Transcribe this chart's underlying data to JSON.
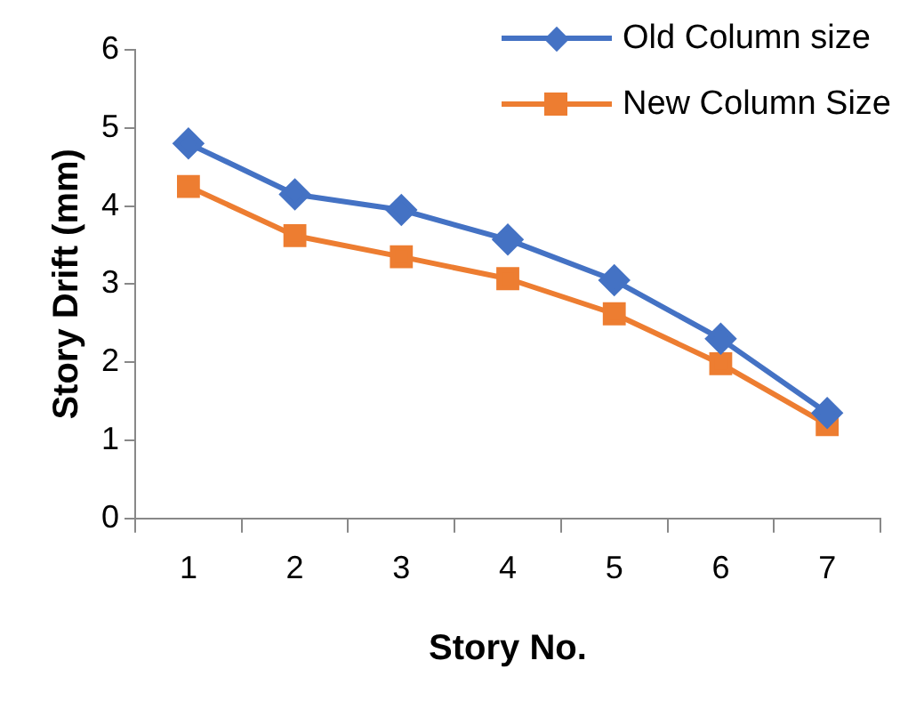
{
  "chart_data": {
    "type": "line",
    "xlabel": "Story No.",
    "ylabel": "Story Drift (mm)",
    "categories": [
      "1",
      "2",
      "3",
      "4",
      "5",
      "6",
      "7"
    ],
    "series": [
      {
        "name": "Old Column size",
        "color": "#4472c4",
        "marker": "diamond",
        "values": [
          4.8,
          4.15,
          3.95,
          3.57,
          3.05,
          2.3,
          1.35
        ]
      },
      {
        "name": "New Column Size",
        "color": "#ed7d31",
        "marker": "square",
        "values": [
          4.25,
          3.62,
          3.35,
          3.07,
          2.62,
          1.98,
          1.2
        ]
      }
    ],
    "ylim": [
      0,
      6
    ],
    "yticks": [
      0,
      1,
      2,
      3,
      4,
      5,
      6
    ],
    "grid": false,
    "legend": "top right",
    "line_style": "solid"
  }
}
